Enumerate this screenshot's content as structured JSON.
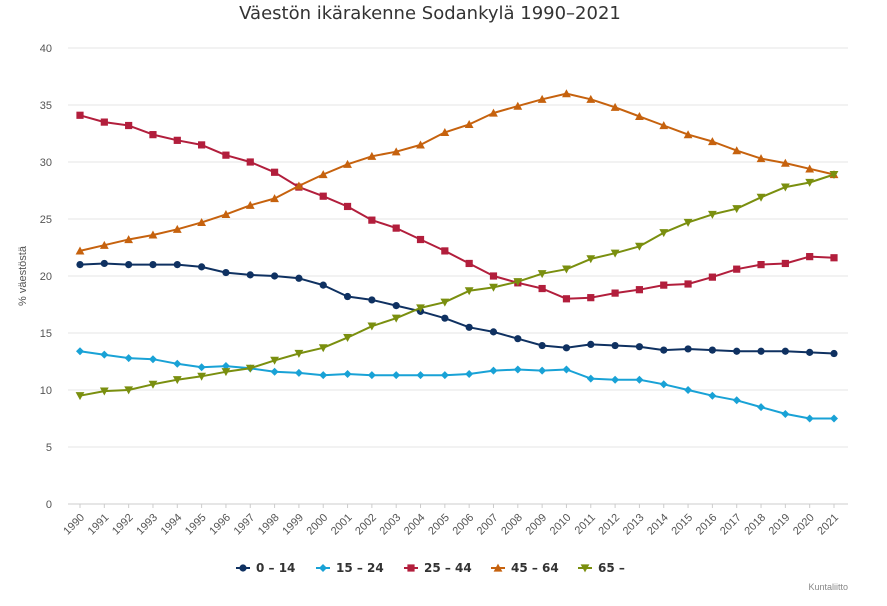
{
  "chart_data": {
    "type": "line",
    "title": "Väestön ikärakenne Sodankylä 1990–2021",
    "ylabel": "% väestöstä",
    "xlabel": "",
    "ylim": [
      0,
      40
    ],
    "yticks": [
      "0",
      "5",
      "10",
      "15",
      "20",
      "25",
      "30",
      "35",
      "40"
    ],
    "categories": [
      "1990",
      "1991",
      "1992",
      "1993",
      "1994",
      "1995",
      "1996",
      "1997",
      "1998",
      "1999",
      "2000",
      "2001",
      "2002",
      "2003",
      "2004",
      "2005",
      "2006",
      "2007",
      "2008",
      "2009",
      "2010",
      "2011",
      "2012",
      "2013",
      "2014",
      "2015",
      "2016",
      "2017",
      "2018",
      "2019",
      "2020",
      "2021"
    ],
    "grid": true,
    "legend_position": "bottom",
    "series": [
      {
        "name": "0 – 14",
        "color": "#0f3161",
        "marker": "circle",
        "values": [
          21.0,
          21.1,
          21.0,
          21.0,
          21.0,
          20.8,
          20.3,
          20.1,
          20.0,
          19.8,
          19.2,
          18.2,
          17.9,
          17.4,
          16.9,
          16.3,
          15.5,
          15.1,
          14.5,
          13.9,
          13.7,
          14.0,
          13.9,
          13.8,
          13.5,
          13.6,
          13.5,
          13.4,
          13.4,
          13.4,
          13.3,
          13.2
        ]
      },
      {
        "name": "15 – 24",
        "color": "#19a2d6",
        "marker": "diamond",
        "values": [
          13.4,
          13.1,
          12.8,
          12.7,
          12.3,
          12.0,
          12.1,
          11.9,
          11.6,
          11.5,
          11.3,
          11.4,
          11.3,
          11.3,
          11.3,
          11.3,
          11.4,
          11.7,
          11.8,
          11.7,
          11.8,
          11.0,
          10.9,
          10.9,
          10.5,
          10.0,
          9.5,
          9.1,
          8.5,
          7.9,
          7.5,
          7.5
        ]
      },
      {
        "name": "25 – 44",
        "color": "#b21e3c",
        "marker": "square",
        "values": [
          34.1,
          33.5,
          33.2,
          32.4,
          31.9,
          31.5,
          30.6,
          30.0,
          29.1,
          27.8,
          27.0,
          26.1,
          24.9,
          24.2,
          23.2,
          22.2,
          21.1,
          20.0,
          19.4,
          18.9,
          18.0,
          18.1,
          18.5,
          18.8,
          19.2,
          19.3,
          19.9,
          20.6,
          21.0,
          21.1,
          21.7,
          21.6
        ]
      },
      {
        "name": "45 – 64",
        "color": "#c6620e",
        "marker": "triangle",
        "values": [
          22.2,
          22.7,
          23.2,
          23.6,
          24.1,
          24.7,
          25.4,
          26.2,
          26.8,
          27.9,
          28.9,
          29.8,
          30.5,
          30.9,
          31.5,
          32.6,
          33.3,
          34.3,
          34.9,
          35.5,
          36.0,
          35.5,
          34.8,
          34.0,
          33.2,
          32.4,
          31.8,
          31.0,
          30.3,
          29.9,
          29.4,
          28.9
        ]
      },
      {
        "name": "65 –",
        "color": "#7a8f0f",
        "marker": "triangle-down",
        "values": [
          9.5,
          9.9,
          10.0,
          10.5,
          10.9,
          11.2,
          11.6,
          11.9,
          12.6,
          13.2,
          13.7,
          14.6,
          15.6,
          16.3,
          17.2,
          17.7,
          18.7,
          19.0,
          19.5,
          20.2,
          20.6,
          21.5,
          22.0,
          22.6,
          23.8,
          24.7,
          25.4,
          25.9,
          26.9,
          27.8,
          28.2,
          28.9
        ]
      }
    ]
  },
  "credit": "Kuntaliitto"
}
